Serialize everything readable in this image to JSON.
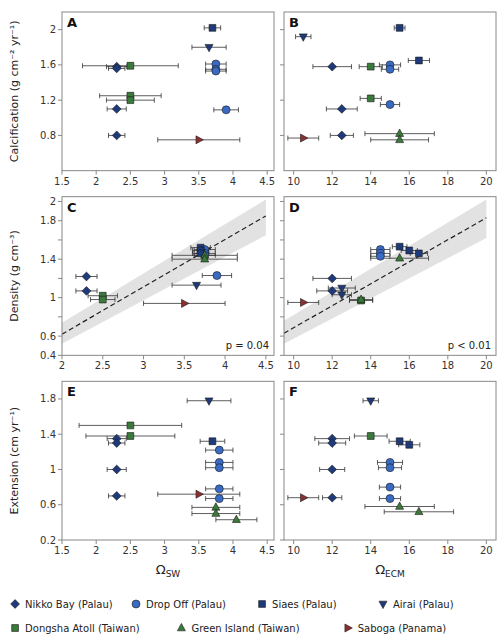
{
  "chart_data": [
    {
      "type": "scatter",
      "title": "A",
      "y_label": "Calcification (g cm⁻² yr⁻¹)",
      "xlim": [
        1.5,
        4.6
      ],
      "xticks": [
        1.5,
        2,
        2.5,
        3,
        3.5,
        4,
        4.5
      ],
      "ylim": [
        0.4,
        2.2
      ],
      "yticks": [
        0.8,
        1.2,
        1.6,
        2
      ],
      "grid": false,
      "series": [
        {
          "name": "Nikko Bay (Palau)",
          "color": "#1f3a7a",
          "marker": "diamond",
          "x": [
            2.3,
            2.3,
            2.3,
            2.3
          ],
          "values": [
            1.58,
            1.56,
            1.1,
            0.8
          ],
          "xerr": [
            0.15,
            0.12,
            0.14,
            0.12
          ]
        },
        {
          "name": "Drop Off (Palau)",
          "color": "#3a6bc4",
          "marker": "circle",
          "x": [
            3.75,
            3.75,
            3.75,
            3.9
          ],
          "values": [
            1.61,
            1.55,
            1.53,
            1.09
          ],
          "xerr": [
            0.15,
            0.15,
            0.15,
            0.18
          ]
        },
        {
          "name": "Siaes (Palau)",
          "color": "#1f3a7a",
          "marker": "square",
          "x": [
            3.7
          ],
          "values": [
            2.02
          ],
          "xerr": [
            0.12
          ]
        },
        {
          "name": "Airai (Palau)",
          "color": "#1f3a7a",
          "marker": "triangle-down",
          "x": [
            3.65
          ],
          "values": [
            1.8
          ],
          "xerr": [
            0.25
          ]
        },
        {
          "name": "Dongsha Atoll (Taiwan)",
          "color": "#3a7a3a",
          "marker": "square",
          "x": [
            2.5,
            2.5,
            2.5
          ],
          "values": [
            1.59,
            1.25,
            1.2
          ],
          "xerr": [
            0.7,
            0.45,
            0.35
          ]
        },
        {
          "name": "Saboga (Panama)",
          "color": "#8b3030",
          "marker": "triangle-right",
          "x": [
            3.5
          ],
          "values": [
            0.75
          ],
          "xerr": [
            0.6
          ]
        }
      ]
    },
    {
      "type": "scatter",
      "title": "B",
      "tick_labels": "x",
      "legend": "bottom",
      "xlim": [
        9.5,
        20.5
      ],
      "xticks": [
        10,
        12,
        14,
        16,
        18,
        20
      ],
      "ylim": [
        0.4,
        2.2
      ],
      "yticks": [
        0.8,
        1.2,
        1.6,
        2
      ],
      "grid": false,
      "series": [
        {
          "name": "Nikko Bay (Palau)",
          "color": "#1f3a7a",
          "marker": "diamond",
          "x": [
            12.0,
            12.5,
            12.5
          ],
          "values": [
            1.58,
            1.1,
            0.8
          ],
          "xerr": [
            1.0,
            0.8,
            0.6
          ]
        },
        {
          "name": "Drop Off (Palau)",
          "color": "#3a6bc4",
          "marker": "circle",
          "x": [
            15.0,
            15.0,
            15.0
          ],
          "values": [
            1.6,
            1.55,
            1.15
          ],
          "xerr": [
            0.55,
            0.45,
            0.5
          ]
        },
        {
          "name": "Siaes (Palau)",
          "color": "#1f3a7a",
          "marker": "square",
          "x": [
            15.5,
            16.5
          ],
          "values": [
            2.02,
            1.65
          ],
          "xerr": [
            0.28,
            0.55
          ]
        },
        {
          "name": "Airai (Palau)",
          "color": "#1f3a7a",
          "marker": "triangle-down",
          "x": [
            10.5
          ],
          "values": [
            1.92
          ],
          "xerr": [
            0.4
          ]
        },
        {
          "name": "Dongsha Atoll (Taiwan)",
          "color": "#3a7a3a",
          "marker": "square",
          "x": [
            14.0,
            14.0
          ],
          "values": [
            1.58,
            1.22
          ],
          "xerr": [
            0.6,
            0.55
          ]
        },
        {
          "name": "Green Island (Taiwan)",
          "color": "#3a7a3a",
          "marker": "triangle-up",
          "x": [
            15.5,
            15.5
          ],
          "values": [
            0.82,
            0.75
          ],
          "xerr": [
            1.8,
            1.5
          ]
        },
        {
          "name": "Saboga (Panama)",
          "color": "#8b3030",
          "marker": "triangle-right",
          "x": [
            10.5
          ],
          "values": [
            0.77
          ],
          "xerr": [
            0.8
          ]
        }
      ]
    },
    {
      "type": "scatter",
      "title": "C",
      "y_label": "Density (g cm⁻³)",
      "annotations": [
        "p = 0.04"
      ],
      "xlim": [
        2.0,
        4.6
      ],
      "xticks": [
        2,
        2.5,
        3,
        3.5,
        4,
        4.5
      ],
      "ylim": [
        0.4,
        2.05
      ],
      "yticks": [
        0.4,
        0.6,
        {
          "value": 0.8,
          "label": null
        },
        1,
        {
          "value": 1.2,
          "label": null
        },
        1.4,
        {
          "value": 1.6,
          "label": null
        },
        1.8,
        2
      ],
      "grid": false,
      "band": {
        "x_low": [
          2.0,
          4.5
        ],
        "low": [
          0.52,
          1.65
        ],
        "x_high": [
          2.0,
          4.5
        ],
        "high": [
          0.74,
          2.02
        ]
      },
      "fit": {
        "x": [
          2.0,
          4.5
        ],
        "values": [
          0.62,
          1.85
        ],
        "line_style": "dashed"
      },
      "series": [
        {
          "name": "Nikko Bay (Palau)",
          "color": "#1f3a7a",
          "marker": "diamond",
          "x": [
            2.3,
            2.3
          ],
          "values": [
            1.22,
            1.07
          ],
          "xerr": [
            0.13,
            0.13
          ]
        },
        {
          "name": "Drop Off (Palau)",
          "color": "#3a6bc4",
          "marker": "circle",
          "x": [
            3.75,
            3.75,
            3.75,
            3.9
          ],
          "values": [
            1.5,
            1.46,
            1.44,
            1.23
          ],
          "xerr": [
            0.13,
            0.13,
            0.13,
            0.18
          ]
        },
        {
          "name": "Siaes (Palau)",
          "color": "#1f3a7a",
          "marker": "square",
          "x": [
            3.7,
            3.7,
            3.7
          ],
          "values": [
            1.52,
            1.49,
            1.46
          ],
          "xerr": [
            0.12,
            0.1,
            0.1
          ]
        },
        {
          "name": "Airai (Palau)",
          "color": "#1f3a7a",
          "marker": "triangle-down",
          "x": [
            3.65
          ],
          "values": [
            1.13
          ],
          "xerr": [
            0.3
          ]
        },
        {
          "name": "Dongsha Atoll (Taiwan)",
          "color": "#3a7a3a",
          "marker": "square",
          "x": [
            2.5,
            2.5
          ],
          "values": [
            1.02,
            0.98
          ],
          "xerr": [
            0.18,
            0.15
          ]
        },
        {
          "name": "Green Island (Taiwan)",
          "color": "#3a7a3a",
          "marker": "triangle-up",
          "x": [
            3.75,
            3.75
          ],
          "values": [
            1.44,
            1.4
          ],
          "xerr": [
            0.4,
            0.4
          ]
        },
        {
          "name": "Saboga (Panama)",
          "color": "#8b3030",
          "marker": "triangle-right",
          "x": [
            3.5
          ],
          "values": [
            0.94
          ],
          "xerr": [
            0.5
          ]
        }
      ]
    },
    {
      "type": "scatter",
      "title": "D",
      "tick_labels": "x",
      "annotations": [
        "p < 0.01"
      ],
      "xlim": [
        9.5,
        20.5
      ],
      "xticks": [
        10,
        12,
        14,
        16,
        18,
        20
      ],
      "ylim": [
        0.4,
        2.05
      ],
      "yticks": [
        0.4,
        0.6,
        {
          "value": 0.8,
          "label": null
        },
        1,
        {
          "value": 1.2,
          "label": null
        },
        1.4,
        {
          "value": 1.6,
          "label": null
        },
        1.8,
        2
      ],
      "grid": false,
      "band": {
        "x_low": [
          9.5,
          20.0
        ],
        "low": [
          0.52,
          1.62
        ],
        "x_high": [
          9.5,
          20.0
        ],
        "high": [
          0.76,
          2.02
        ]
      },
      "fit": {
        "x": [
          9.5,
          20.0
        ],
        "values": [
          0.63,
          1.83
        ],
        "line_style": "dashed"
      },
      "series": [
        {
          "name": "Nikko Bay (Palau)",
          "color": "#1f3a7a",
          "marker": "diamond",
          "x": [
            12.0,
            12.0
          ],
          "values": [
            1.2,
            1.07
          ],
          "xerr": [
            1.0,
            0.8
          ]
        },
        {
          "name": "Drop Off (Palau)",
          "color": "#3a6bc4",
          "marker": "circle",
          "x": [
            14.5,
            14.5,
            14.5
          ],
          "values": [
            1.5,
            1.46,
            1.43
          ],
          "xerr": [
            0.5,
            0.5,
            0.5
          ]
        },
        {
          "name": "Siaes (Palau)",
          "color": "#1f3a7a",
          "marker": "square",
          "x": [
            15.5,
            16.0,
            16.5
          ],
          "values": [
            1.53,
            1.49,
            1.46
          ],
          "xerr": [
            0.38,
            0.42,
            0.45
          ]
        },
        {
          "name": "Airai (Palau)",
          "color": "#1f3a7a",
          "marker": "triangle-down",
          "x": [
            12.5,
            12.5
          ],
          "values": [
            1.1,
            1.03
          ],
          "xerr": [
            0.7,
            0.5
          ]
        },
        {
          "name": "Dongsha Atoll (Taiwan)",
          "color": "#3a7a3a",
          "marker": "square",
          "x": [
            13.5
          ],
          "values": [
            0.97
          ],
          "xerr": [
            0.6
          ]
        },
        {
          "name": "Green Island (Taiwan)",
          "color": "#3a7a3a",
          "marker": "triangle-up",
          "x": [
            15.5,
            13.5
          ],
          "values": [
            1.41,
            0.98
          ],
          "xerr": [
            1.5,
            0.6
          ]
        },
        {
          "name": "Saboga (Panama)",
          "color": "#8b3030",
          "marker": "triangle-right",
          "x": [
            10.5
          ],
          "values": [
            0.95
          ],
          "xerr": [
            0.8
          ]
        }
      ]
    },
    {
      "type": "scatter",
      "title": "E",
      "y_label": "Extension (cm yr⁻¹)",
      "x_label": "ΩSW",
      "xlim": [
        1.5,
        4.6
      ],
      "xticks": [
        1.5,
        2,
        2.5,
        3,
        3.5,
        4,
        4.5
      ],
      "ylim": [
        0.2,
        2.0
      ],
      "yticks": [
        0.2,
        0.6,
        1,
        1.4,
        1.8
      ],
      "grid": false,
      "series": [
        {
          "name": "Nikko Bay (Palau)",
          "color": "#1f3a7a",
          "marker": "diamond",
          "x": [
            2.3,
            2.3,
            2.3,
            2.3
          ],
          "values": [
            1.35,
            1.3,
            1.0,
            0.7
          ],
          "xerr": [
            0.14,
            0.12,
            0.14,
            0.12
          ]
        },
        {
          "name": "Drop Off (Palau)",
          "color": "#3a6bc4",
          "marker": "circle",
          "x": [
            3.8,
            3.8,
            3.8,
            3.8,
            3.8
          ],
          "values": [
            1.22,
            1.08,
            1.02,
            0.78,
            0.67
          ],
          "xerr": [
            0.2,
            0.2,
            0.2,
            0.2,
            0.2
          ]
        },
        {
          "name": "Siaes (Palau)",
          "color": "#1f3a7a",
          "marker": "square",
          "x": [
            3.7
          ],
          "values": [
            1.32
          ],
          "xerr": [
            0.18
          ]
        },
        {
          "name": "Airai (Palau)",
          "color": "#1f3a7a",
          "marker": "triangle-down",
          "x": [
            3.65
          ],
          "values": [
            1.78
          ],
          "xerr": [
            0.32
          ]
        },
        {
          "name": "Dongsha Atoll (Taiwan)",
          "color": "#3a7a3a",
          "marker": "square",
          "x": [
            2.5,
            2.5
          ],
          "values": [
            1.5,
            1.38
          ],
          "xerr": [
            0.75,
            0.65
          ]
        },
        {
          "name": "Green Island (Taiwan)",
          "color": "#3a7a3a",
          "marker": "triangle-up",
          "x": [
            3.75,
            3.75,
            4.05
          ],
          "values": [
            0.57,
            0.5,
            0.43
          ],
          "xerr": [
            0.35,
            0.35,
            0.3
          ]
        },
        {
          "name": "Saboga (Panama)",
          "color": "#8b3030",
          "marker": "triangle-right",
          "x": [
            3.5
          ],
          "values": [
            0.72
          ],
          "xerr": [
            0.6
          ]
        }
      ]
    },
    {
      "type": "scatter",
      "title": "F",
      "tick_labels": "x",
      "x_label": "ΩECM",
      "xlim": [
        9.5,
        20.5
      ],
      "xticks": [
        10,
        12,
        14,
        16,
        18,
        20
      ],
      "ylim": [
        0.2,
        2.0
      ],
      "yticks": [
        0.2,
        0.6,
        1,
        1.4,
        1.8
      ],
      "grid": false,
      "series": [
        {
          "name": "Nikko Bay (Palau)",
          "color": "#1f3a7a",
          "marker": "diamond",
          "x": [
            12.0,
            12.0,
            12.0,
            12.0
          ],
          "values": [
            1.35,
            1.3,
            1.0,
            0.68
          ],
          "xerr": [
            0.9,
            0.7,
            0.65,
            0.5
          ]
        },
        {
          "name": "Drop Off (Palau)",
          "color": "#3a6bc4",
          "marker": "circle",
          "x": [
            15.0,
            15.0,
            15.0,
            15.0
          ],
          "values": [
            1.08,
            1.02,
            0.8,
            0.67
          ],
          "xerr": [
            0.65,
            0.6,
            0.55,
            0.55
          ]
        },
        {
          "name": "Siaes (Palau)",
          "color": "#1f3a7a",
          "marker": "square",
          "x": [
            15.5,
            16.0
          ],
          "values": [
            1.32,
            1.28
          ],
          "xerr": [
            0.55,
            0.55
          ]
        },
        {
          "name": "Airai (Palau)",
          "color": "#1f3a7a",
          "marker": "triangle-down",
          "x": [
            14.0
          ],
          "values": [
            1.78
          ],
          "xerr": [
            0.4
          ]
        },
        {
          "name": "Dongsha Atoll (Taiwan)",
          "color": "#3a7a3a",
          "marker": "square",
          "x": [
            14.0
          ],
          "values": [
            1.38
          ],
          "xerr": [
            0.85
          ]
        },
        {
          "name": "Green Island (Taiwan)",
          "color": "#3a7a3a",
          "marker": "triangle-up",
          "x": [
            15.5,
            16.5
          ],
          "values": [
            0.58,
            0.52
          ],
          "xerr": [
            1.8,
            1.8
          ]
        },
        {
          "name": "Saboga (Panama)",
          "color": "#8b3030",
          "marker": "triangle-right",
          "x": [
            10.5
          ],
          "values": [
            0.68
          ],
          "xerr": [
            0.8
          ]
        }
      ]
    }
  ]
}
